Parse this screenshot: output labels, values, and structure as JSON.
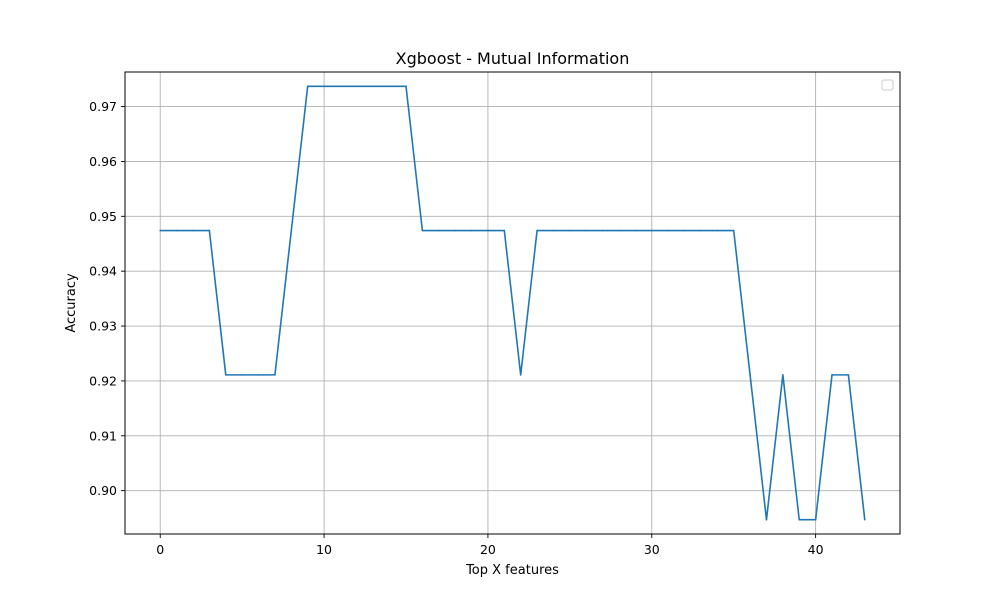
{
  "chart_data": {
    "type": "line",
    "title": "Xgboost - Mutual Information",
    "xlabel": "Top X features",
    "ylabel": "Accuracy",
    "xlim": [
      -2.15,
      45.15
    ],
    "ylim": [
      0.8921,
      0.9763
    ],
    "xticks": [
      0,
      10,
      20,
      30,
      40
    ],
    "xtick_labels": [
      "0",
      "10",
      "20",
      "30",
      "40"
    ],
    "yticks": [
      0.9,
      0.91,
      0.92,
      0.93,
      0.94,
      0.95,
      0.96,
      0.97
    ],
    "ytick_labels": [
      "0.90",
      "0.91",
      "0.92",
      "0.93",
      "0.94",
      "0.95",
      "0.96",
      "0.97"
    ],
    "grid": true,
    "legend": {
      "placement": "upper right",
      "entries": []
    },
    "series": [
      {
        "color": "#1f77b4",
        "x": [
          0,
          1,
          2,
          3,
          4,
          5,
          6,
          7,
          8,
          9,
          10,
          11,
          12,
          13,
          14,
          15,
          16,
          17,
          18,
          19,
          20,
          21,
          22,
          23,
          24,
          25,
          26,
          27,
          28,
          29,
          30,
          31,
          32,
          33,
          34,
          35,
          36,
          37,
          38,
          39,
          40,
          41,
          42,
          43
        ],
        "values": [
          0.9474,
          0.9474,
          0.9474,
          0.9474,
          0.9211,
          0.9211,
          0.9211,
          0.9211,
          0.9474,
          0.9737,
          0.9737,
          0.9737,
          0.9737,
          0.9737,
          0.9737,
          0.9737,
          0.9474,
          0.9474,
          0.9474,
          0.9474,
          0.9474,
          0.9474,
          0.9211,
          0.9474,
          0.9474,
          0.9474,
          0.9474,
          0.9474,
          0.9474,
          0.9474,
          0.9474,
          0.9474,
          0.9474,
          0.9474,
          0.9474,
          0.9474,
          0.9211,
          0.8947,
          0.9211,
          0.8947,
          0.8947,
          0.9211,
          0.9211,
          0.8947
        ]
      }
    ]
  }
}
